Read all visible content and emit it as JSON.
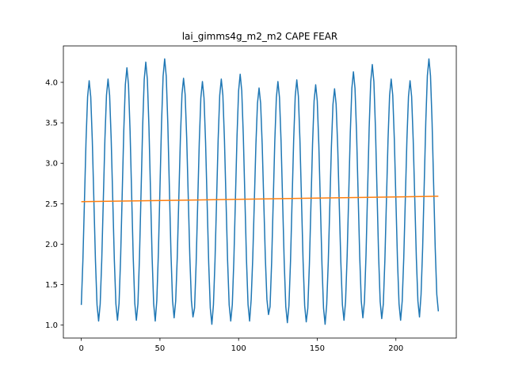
{
  "chart_data": {
    "type": "line",
    "title": "lai_gimms4g_m2_m2 CAPE FEAR",
    "xlabel": "",
    "ylabel": "",
    "xlim": [
      -11.4,
      238.4
    ],
    "ylim": [
      0.84,
      4.45
    ],
    "x_ticks": [
      0,
      50,
      100,
      150,
      200
    ],
    "y_ticks": [
      1.0,
      1.5,
      2.0,
      2.5,
      3.0,
      3.5,
      4.0
    ],
    "x_tick_labels": [
      "0",
      "50",
      "100",
      "150",
      "200"
    ],
    "y_tick_labels": [
      "1.0",
      "1.5",
      "2.0",
      "2.5",
      "3.0",
      "3.5",
      "4.0"
    ],
    "grid": false,
    "legend": "none",
    "series": [
      {
        "color": "#1f77b4",
        "style": "seasonal-cycle",
        "period": 12,
        "x_start": 0,
        "x_end": 227,
        "yearly_peaks": [
          4.02,
          4.04,
          4.18,
          4.25,
          4.29,
          4.05,
          4.01,
          4.04,
          4.1,
          3.93,
          4.01,
          4.03,
          3.97,
          3.92,
          4.13,
          4.22,
          4.04,
          4.02,
          4.29
        ],
        "yearly_troughs": [
          1.05,
          1.06,
          1.06,
          1.05,
          1.09,
          1.1,
          1.01,
          1.05,
          1.05,
          1.13,
          1.03,
          1.04,
          1.01,
          1.06,
          1.09,
          1.08,
          1.06,
          1.1,
          1.17
        ]
      },
      {
        "color": "#ff7f0e",
        "style": "trend",
        "x": [
          0,
          227
        ],
        "y": [
          2.525,
          2.592
        ]
      }
    ]
  }
}
